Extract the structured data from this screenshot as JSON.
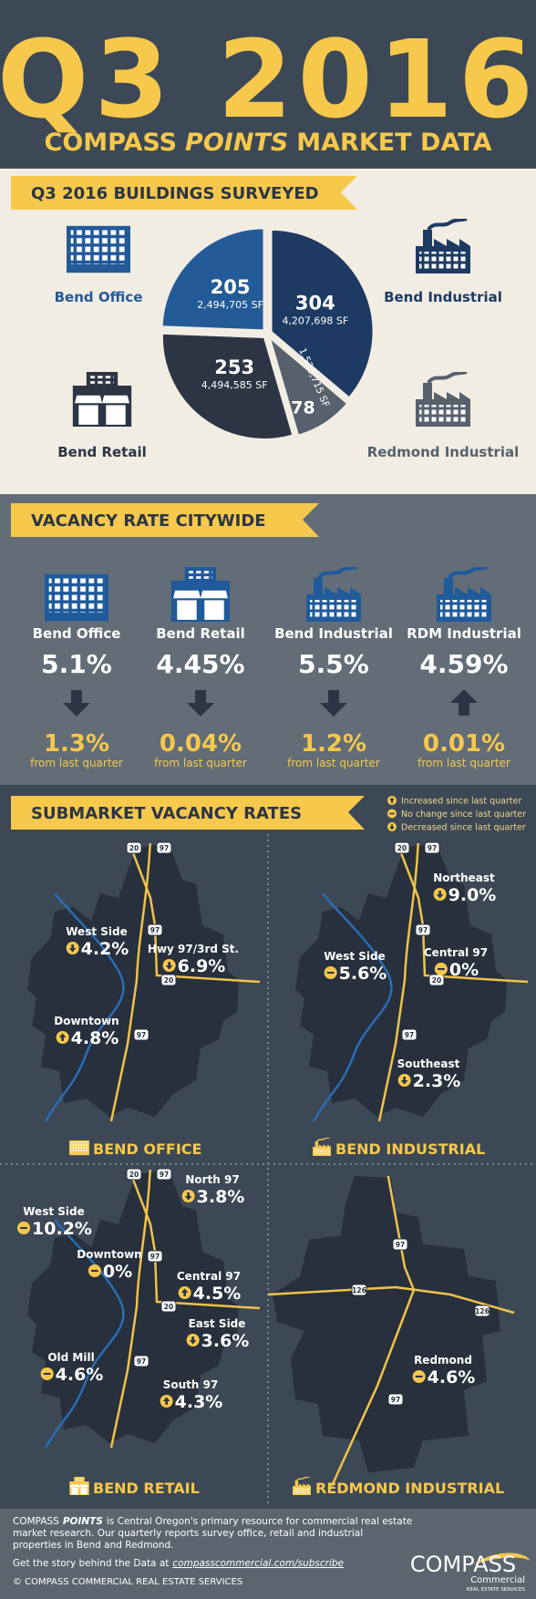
{
  "header": {
    "title": "Q3 2016",
    "subtitle": {
      "brand": "COMPASS",
      "emphasis": "POINTS",
      "rest": "MARKET DATA"
    }
  },
  "chart_data": {
    "type": "pie",
    "title": "Q3 2016 BUILDINGS SURVEYED",
    "categories": [
      "Bend Industrial",
      "Redmond Industrial",
      "Bend Retail",
      "Bend Office"
    ],
    "values": [
      304,
      78,
      253,
      205
    ],
    "sublabels": [
      "4,207,698 SF",
      "1,523,715 SF",
      "4,494,585 SF",
      "2,494,705 SF"
    ],
    "colors": [
      "#1d3a63",
      "#56616d",
      "#2c3544",
      "#225b98"
    ]
  },
  "vacancy": {
    "title": "VACANCY RATE CITYWIDE",
    "items": [
      {
        "name": "Bend Office",
        "rate": "5.1%",
        "direction": "down",
        "change": "1.3%",
        "note": "from last quarter"
      },
      {
        "name": "Bend Retail",
        "rate": "4.45%",
        "direction": "down",
        "change": "0.04%",
        "note": "from last quarter"
      },
      {
        "name": "Bend Industrial",
        "rate": "5.5%",
        "direction": "down",
        "change": "1.2%",
        "note": "from last quarter"
      },
      {
        "name": "RDM Industrial",
        "rate": "4.59%",
        "direction": "up",
        "change": "0.01%",
        "note": "from last quarter"
      }
    ]
  },
  "submarkets": {
    "title": "SUBMARKET VACANCY RATES",
    "legend": [
      {
        "direction": "up",
        "label": "Increased since last quarter"
      },
      {
        "direction": "none",
        "label": "No change since last quarter"
      },
      {
        "direction": "down",
        "label": "Decreased since last quarter"
      }
    ],
    "maps": [
      {
        "title": "BEND OFFICE",
        "shields": [
          "20",
          "97",
          "97",
          "20",
          "97"
        ],
        "areas": [
          {
            "name": "West Side",
            "rate": "4.2%",
            "direction": "down"
          },
          {
            "name": "Hwy 97/3rd St.",
            "rate": "6.9%",
            "direction": "down"
          },
          {
            "name": "Downtown",
            "rate": "4.8%",
            "direction": "up"
          }
        ]
      },
      {
        "title": "BEND INDUSTRIAL",
        "shields": [
          "20",
          "97",
          "97",
          "20",
          "97"
        ],
        "areas": [
          {
            "name": "Northeast",
            "rate": "9.0%",
            "direction": "down"
          },
          {
            "name": "Central 97",
            "rate": "0%",
            "direction": "none"
          },
          {
            "name": "West Side",
            "rate": "5.6%",
            "direction": "none"
          },
          {
            "name": "Southeast",
            "rate": "2.3%",
            "direction": "down"
          }
        ]
      },
      {
        "title": "BEND RETAIL",
        "shields": [
          "20",
          "97",
          "97",
          "20",
          "97"
        ],
        "areas": [
          {
            "name": "North 97",
            "rate": "3.8%",
            "direction": "down"
          },
          {
            "name": "West Side",
            "rate": "10.2%",
            "direction": "none"
          },
          {
            "name": "Downtown",
            "rate": "0%",
            "direction": "none"
          },
          {
            "name": "Central 97",
            "rate": "4.5%",
            "direction": "up"
          },
          {
            "name": "East Side",
            "rate": "3.6%",
            "direction": "down"
          },
          {
            "name": "Old Mill",
            "rate": "4.6%",
            "direction": "none"
          },
          {
            "name": "South 97",
            "rate": "4.3%",
            "direction": "up"
          }
        ]
      },
      {
        "title": "REDMOND INDUSTRIAL",
        "shields": [
          "97",
          "126",
          "126",
          "97"
        ],
        "areas": [
          {
            "name": "Redmond",
            "rate": "4.6%",
            "direction": "none"
          }
        ]
      }
    ]
  },
  "footer": {
    "brand": "COMPASS",
    "emphasis": "POINTS",
    "lines": [
      "is Central Oregon's primary resource for commercial real estate",
      "market research. Our quarterly reports survey office, retail and industrial",
      "properties in Bend and Redmond."
    ],
    "cta": "Get the story behind the Data at",
    "link": "compasscommercial.com/subscribe",
    "copyright": "© COMPASS COMMERCIAL REAL ESTATE SERVICES",
    "logo": {
      "name": "COMPASS",
      "sub": "Commercial",
      "tagline": "REAL ESTATE SERVICES"
    }
  }
}
